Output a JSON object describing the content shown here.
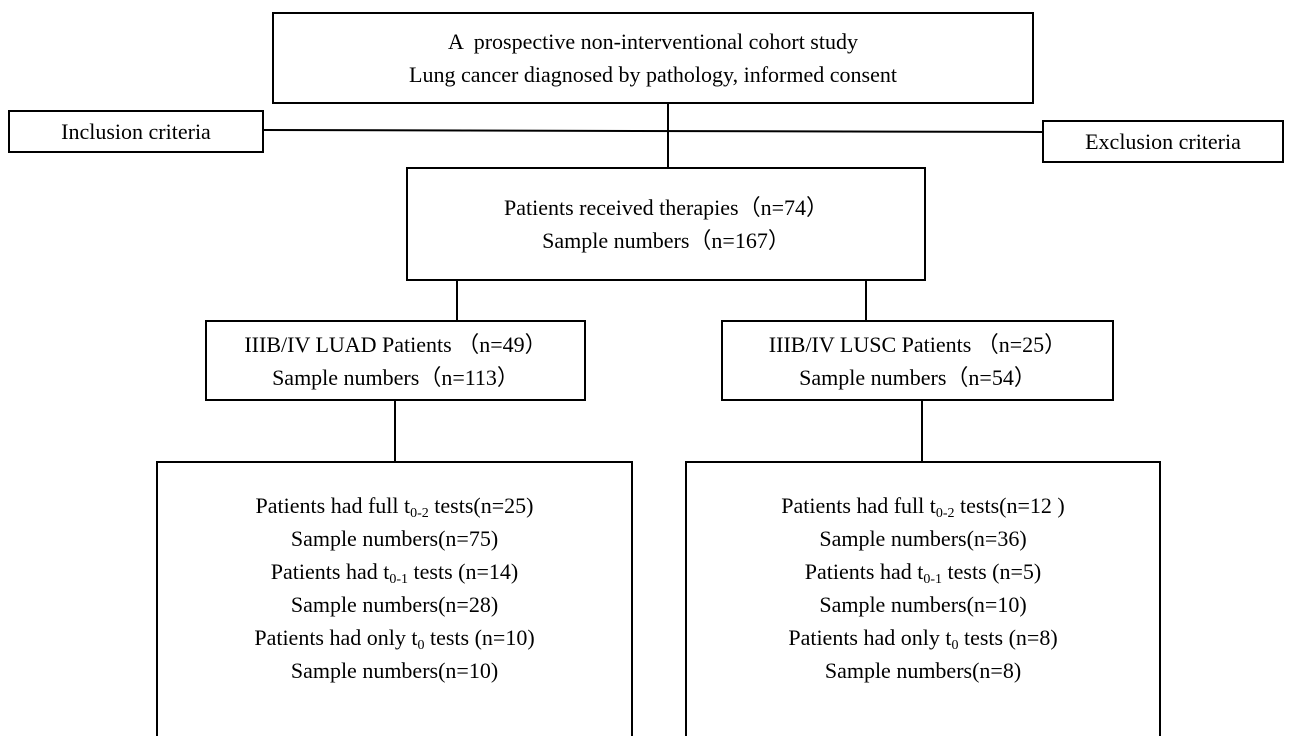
{
  "top": {
    "lines": [
      "A  prospective non-interventional cohort study",
      "Lung cancer diagnosed by pathology, informed consent"
    ]
  },
  "inclusion": "Inclusion criteria",
  "exclusion": "Exclusion criteria",
  "therapies": {
    "lines": [
      "Patients received therapies（n=74）",
      "Sample numbers（n=167）"
    ]
  },
  "luad": {
    "lines": [
      "IIIB/IV LUAD Patients （n=49）",
      "Sample numbers（n=113）"
    ]
  },
  "lusc": {
    "lines": [
      "IIIB/IV LUSC Patients （n=25）",
      "Sample numbers（n=54）"
    ]
  },
  "luad_tests": {
    "lines": [
      [
        "Patients had full t",
        "0-2",
        " tests(n=25)"
      ],
      "Sample numbers(n=75)",
      [
        "Patients had t",
        "0-1",
        " tests (n=14)"
      ],
      "Sample numbers(n=28)",
      [
        "Patients had only t",
        "0",
        " tests (n=10)"
      ],
      "Sample numbers(n=10)"
    ]
  },
  "lusc_tests": {
    "lines": [
      [
        "Patients had full t",
        "0-2",
        " tests(n=12 )"
      ],
      "Sample numbers(n=36)",
      [
        "Patients had t",
        "0-1",
        " tests (n=5)"
      ],
      "Sample numbers(n=10)",
      [
        "Patients had only t",
        "0",
        " tests (n=8)"
      ],
      "Sample numbers(n=8)"
    ]
  }
}
